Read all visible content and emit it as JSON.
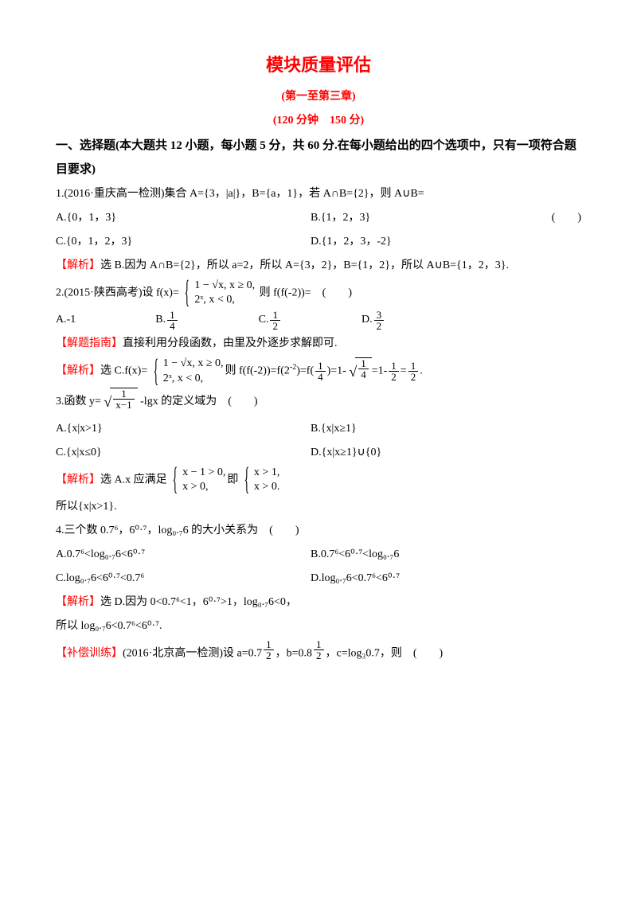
{
  "title": "模块质量评估",
  "subtitle1": "(第一至第三章)",
  "subtitle2": "(120 分钟　150 分)",
  "section1_head": "一、选择题(本大题共 12 小题，每小题 5 分，共 60 分.在每小题给出的四个选项中，只有一项符合题目要求)",
  "q1": {
    "stem": "1.(2016·重庆高一检测)集合 A={3，|a|}，B={a，1}，若 A∩B={2}，则 A∪B=",
    "paren": "(　　)",
    "optA": "A.{0，1，3}",
    "optB": "B.{1，2，3}",
    "optC": "C.{0，1，2，3}",
    "optD": "D.{1，2，3，-2}",
    "ans_label": "【解析】",
    "ans_text": "选 B.因为 A∩B={2}，所以 a=2，所以 A={3，2}，B={1，2}，所以 A∪B={1，2，3}."
  },
  "q2": {
    "stem_pre": "2.(2015·陕西高考)设 f(x)=",
    "row1": "1 − √x, x ≥ 0,",
    "row2": "2ˣ, x < 0,",
    "stem_post": "则 f(f(-2))=　(　　)",
    "optA": "A.-1",
    "optB_pre": "B.",
    "optC_pre": "C.",
    "optD_pre": "D.",
    "hint_label": "【解题指南】",
    "hint_text": "直接利用分段函数，由里及外逐步求解即可.",
    "ans_label": "【解析】",
    "ans_pre": "选 C.f(x)=",
    "ans_mid1": "则 f(f(-2))=f(2",
    "ans_mid2": ")=f",
    "ans_mid3": "=1-",
    "ans_mid4": "=1-",
    "ans_mid5": "=",
    "ans_end": "."
  },
  "q3": {
    "stem_pre": "3.函数 y=",
    "stem_post": "-lgx 的定义域为　(　　)",
    "optA": "A.{x|x>1}",
    "optB": "B.{x|x≥1}",
    "optC": "C.{x|x≤0}",
    "optD": "D.{x|x≥1}∪{0}",
    "ans_label": "【解析】",
    "ans_pre": "选 A.x 应满足",
    "b1r1": "x − 1 > 0,",
    "b1r2": "x > 0,",
    "mid": "即",
    "b2r1": "x > 1,",
    "b2r2": "x > 0.",
    "ans2": "所以{x|x>1}."
  },
  "q4": {
    "stem": "4.三个数 0.7⁶，6⁰·⁷，log₀.₇6 的大小关系为　(　　)",
    "optA": "A.0.7⁶<log₀.₇6<6⁰·⁷",
    "optB": "B.0.7⁶<6⁰·⁷<log₀.₇6",
    "optC": "C.log₀.₇6<6⁰·⁷<0.7⁶",
    "optD": "D.log₀.₇6<0.7⁶<6⁰·⁷",
    "ans_label": "【解析】",
    "ans_text": "选 D.因为 0<0.7⁶<1，6⁰·⁷>1，log₀.₇6<0，",
    "ans_text2": "所以 log₀.₇6<0.7⁶<6⁰·⁷."
  },
  "supp": {
    "label": "【补偿训练】",
    "pre": "(2016·北京高一检测)设 a=0.",
    "mid": "，b=0.",
    "post": "，c=log₃0.7，则　(　　)"
  },
  "colors": {
    "red": "#ff0000",
    "text": "#000000",
    "bg": "#ffffff"
  }
}
